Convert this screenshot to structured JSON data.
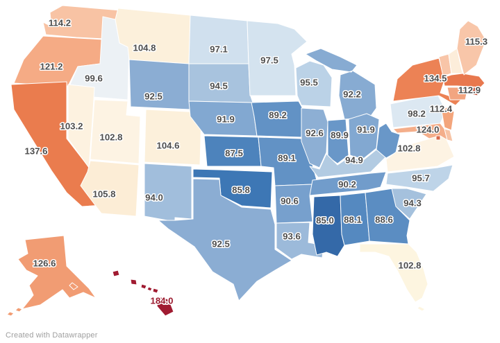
{
  "page": {
    "background": "#ffffff"
  },
  "attribution": {
    "text": "Created with Datawrapper",
    "color": "#9e9e9e"
  },
  "label_style": {
    "color": "#4d4d4d",
    "halo": "#ffffff",
    "hawaii_label_color": "#9b1b2f"
  },
  "chart_data": {
    "type": "choropleth-map",
    "region": "United States (states, Albers-style layout, AK and HI inset bottom-left)",
    "legend": "none visible",
    "color_scale": "diverging: dark blue ~85 (low) through cream ~100 to orange/red ~137+, dark maroon 184",
    "states": [
      {
        "id": "WA",
        "name": "Washington",
        "value": 114.2,
        "fill": "#f8c3a4",
        "label": [
          86,
          33
        ]
      },
      {
        "id": "OR",
        "name": "Oregon",
        "value": 121.2,
        "fill": "#f5ab85",
        "label": [
          74,
          96
        ]
      },
      {
        "id": "CA",
        "name": "California",
        "value": 137.6,
        "fill": "#ea7c4e",
        "label": [
          52,
          218
        ]
      },
      {
        "id": "ID",
        "name": "Idaho",
        "value": 99.6,
        "fill": "#ecf1f5",
        "label": [
          135,
          113
        ]
      },
      {
        "id": "NV",
        "name": "Nevada",
        "value": 103.2,
        "fill": "#fdf2e0",
        "label": [
          103,
          182
        ]
      },
      {
        "id": "UT",
        "name": "Utah",
        "value": 102.8,
        "fill": "#fdf3e3",
        "label": [
          160,
          198
        ]
      },
      {
        "id": "AZ",
        "name": "Arizona",
        "value": 105.8,
        "fill": "#fcedd6",
        "label": [
          150,
          280
        ]
      },
      {
        "id": "MT",
        "name": "Montana",
        "value": 104.8,
        "fill": "#fcf0db",
        "label": [
          208,
          69
        ]
      },
      {
        "id": "WY",
        "name": "Wyoming",
        "value": 92.5,
        "fill": "#8badd3",
        "label": [
          221,
          139
        ]
      },
      {
        "id": "CO",
        "name": "Colorado",
        "value": 104.6,
        "fill": "#fcf0db",
        "label": [
          242,
          210
        ]
      },
      {
        "id": "NM",
        "name": "New Mexico",
        "value": 94.0,
        "fill": "#a1bedc",
        "label": [
          222,
          285
        ]
      },
      {
        "id": "ND",
        "name": "North Dakota",
        "value": 97.1,
        "fill": "#d0e0ee",
        "label": [
          315,
          71
        ]
      },
      {
        "id": "SD",
        "name": "South Dakota",
        "value": 94.5,
        "fill": "#a8c3de",
        "label": [
          315,
          124
        ]
      },
      {
        "id": "NE",
        "name": "Nebraska",
        "value": 91.9,
        "fill": "#82a8d1",
        "label": [
          325,
          172
        ]
      },
      {
        "id": "KS",
        "name": "Kansas",
        "value": 87.5,
        "fill": "#4d83bc",
        "label": [
          337,
          221
        ]
      },
      {
        "id": "OK",
        "name": "Oklahoma",
        "value": 85.8,
        "fill": "#3d77b5",
        "label": [
          347,
          274
        ]
      },
      {
        "id": "TX",
        "name": "Texas",
        "value": 92.5,
        "fill": "#8badd3",
        "label": [
          318,
          352
        ]
      },
      {
        "id": "MN",
        "name": "Minnesota",
        "value": 97.5,
        "fill": "#d4e3ef",
        "label": [
          388,
          87
        ]
      },
      {
        "id": "IA",
        "name": "Iowa",
        "value": 89.2,
        "fill": "#6292c5",
        "label": [
          400,
          166
        ]
      },
      {
        "id": "MO",
        "name": "Missouri",
        "value": 89.1,
        "fill": "#6292c5",
        "label": [
          413,
          228
        ]
      },
      {
        "id": "AR",
        "name": "Arkansas",
        "value": 90.6,
        "fill": "#77a0cd",
        "label": [
          417,
          290
        ]
      },
      {
        "id": "LA",
        "name": "Louisiana",
        "value": 93.6,
        "fill": "#9cbada",
        "label": [
          420,
          341
        ]
      },
      {
        "id": "WI",
        "name": "Wisconsin",
        "value": 95.5,
        "fill": "#bbd2e7",
        "label": [
          445,
          119
        ]
      },
      {
        "id": "IL",
        "name": "Illinois",
        "value": 92.6,
        "fill": "#8dafd4",
        "label": [
          453,
          192
        ]
      },
      {
        "id": "MI",
        "name": "Michigan",
        "value": 92.2,
        "fill": "#87abd2",
        "label": [
          507,
          136
        ]
      },
      {
        "id": "IN",
        "name": "Indiana",
        "value": 89.9,
        "fill": "#6997c8",
        "label": [
          489,
          195
        ]
      },
      {
        "id": "OH",
        "name": "Ohio",
        "value": 91.9,
        "fill": "#82a8d1",
        "label": [
          527,
          187
        ]
      },
      {
        "id": "KY",
        "name": "Kentucky",
        "value": 94.9,
        "fill": "#b2cbe2",
        "label": [
          510,
          231
        ]
      },
      {
        "id": "WV",
        "name": "West Virginia",
        "value": null,
        "fill": "#6997c8",
        "label": null
      },
      {
        "id": "TN",
        "name": "Tennessee",
        "value": 90.2,
        "fill": "#719ccb",
        "label": [
          500,
          266
        ]
      },
      {
        "id": "MS",
        "name": "Mississippi",
        "value": 85.0,
        "fill": "#3469a8",
        "label": [
          468,
          318
        ]
      },
      {
        "id": "AL",
        "name": "Alabama",
        "value": 88.1,
        "fill": "#5589c0",
        "label": [
          508,
          317
        ]
      },
      {
        "id": "GA",
        "name": "Georgia",
        "value": 88.6,
        "fill": "#5b8dc2",
        "label": [
          553,
          317
        ]
      },
      {
        "id": "FL",
        "name": "Florida",
        "value": 102.8,
        "fill": "#fdf5e0",
        "label": [
          590,
          383
        ]
      },
      {
        "id": "SC",
        "name": "South Carolina",
        "value": 94.3,
        "fill": "#a5c1dd",
        "label": [
          594,
          293
        ]
      },
      {
        "id": "NC",
        "name": "North Carolina",
        "value": 95.7,
        "fill": "#bed4e8",
        "label": [
          606,
          257
        ]
      },
      {
        "id": "VA",
        "name": "Virginia",
        "value": 102.8,
        "fill": "#fdf3e3",
        "label": [
          589,
          214
        ]
      },
      {
        "id": "PA",
        "name": "Pennsylvania",
        "value": 98.2,
        "fill": "#dce8f2",
        "label": [
          600,
          164
        ]
      },
      {
        "id": "NJ",
        "name": "New Jersey",
        "value": 124.0,
        "fill": "#f3a57c",
        "label": [
          616,
          187
        ]
      },
      {
        "id": "NY",
        "name": "New York",
        "value": 134.5,
        "fill": "#ec8255",
        "label": [
          627,
          113
        ]
      },
      {
        "id": "CT",
        "name": "Connecticut",
        "value": 112.4,
        "fill": "#f2a580",
        "label": [
          635,
          157
        ]
      },
      {
        "id": "MA",
        "name": "Massachusetts",
        "value": 112.9,
        "fill": "#e8784e",
        "label": [
          676,
          130
        ]
      },
      {
        "id": "RI",
        "name": "Rhode Island",
        "value": null,
        "fill": "#c44f33",
        "label": null
      },
      {
        "id": "VT",
        "name": "Vermont",
        "value": null,
        "fill": "#f8c5a8",
        "label": null
      },
      {
        "id": "NH",
        "name": "New Hampshire",
        "value": null,
        "fill": "#fcedda",
        "label": null
      },
      {
        "id": "ME",
        "name": "Maine",
        "value": 115.3,
        "fill": "#f8c6a9",
        "label": [
          686,
          60
        ]
      },
      {
        "id": "MD",
        "name": "Maryland",
        "value": null,
        "fill": "#f4ae8a",
        "label": null
      },
      {
        "id": "DE",
        "name": "Delaware",
        "value": null,
        "fill": "#f7c3a5",
        "label": null
      },
      {
        "id": "DC",
        "name": "District of Columbia",
        "value": null,
        "fill": "#d96a4a",
        "label": null
      },
      {
        "id": "AK",
        "name": "Alaska",
        "value": 126.6,
        "fill": "#f19c73",
        "label": [
          64,
          380
        ]
      },
      {
        "id": "HI",
        "name": "Hawaii",
        "value": 184.0,
        "fill": "#a01b31",
        "label": [
          233,
          434
        ],
        "label_color": "#9b1b2f"
      }
    ]
  }
}
